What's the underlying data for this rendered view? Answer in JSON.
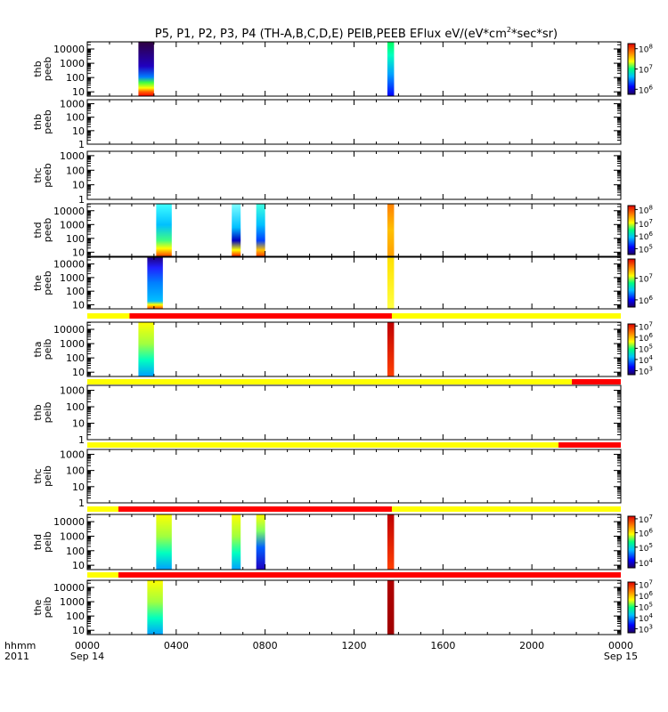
{
  "chart_data": {
    "type": "heatmap",
    "title": "P5, P1, P2, P3, P4 (TH-A,B,C,D,E) PEIB,PEEB EFlux eV/(eV*cm",
    "title_sup": "2",
    "title_tail": "*sec*sr)",
    "x_axis": {
      "label_line1": "hhmm",
      "label_line2": "2011",
      "range_hours": [
        0,
        24
      ],
      "ticks": [
        {
          "hour": 0,
          "label": "0000",
          "date": "Sep 14"
        },
        {
          "hour": 4,
          "label": "0400",
          "date": ""
        },
        {
          "hour": 8,
          "label": "0800",
          "date": ""
        },
        {
          "hour": 12,
          "label": "1200",
          "date": ""
        },
        {
          "hour": 16,
          "label": "1600",
          "date": ""
        },
        {
          "hour": 20,
          "label": "2000",
          "date": ""
        },
        {
          "hour": 24,
          "label": "0000",
          "date": "Sep 15"
        }
      ]
    },
    "panels": [
      {
        "probe": "thb",
        "product": "peeb",
        "yticks": [
          "10",
          "100",
          "1000",
          "10000"
        ],
        "ylog": [
          0.7,
          4.5
        ],
        "colorbar": {
          "ticks": [
            "10",
            "10",
            "10"
          ],
          "exps": [
            "6",
            "7",
            "8"
          ],
          "positions": [
            0.9,
            0.5,
            0.1
          ]
        },
        "segments": [
          {
            "start": 2.3,
            "end": 3.0,
            "style": "dark_top"
          },
          {
            "start": 13.5,
            "end": 13.8,
            "style": "gcb"
          }
        ]
      },
      {
        "probe": "thb",
        "product": "peeb",
        "yticks": [
          "1",
          "10",
          "100",
          "1000"
        ],
        "ylog": [
          0,
          3.3
        ],
        "colorbar": null,
        "segments": []
      },
      {
        "probe": "thc",
        "product": "peeb",
        "yticks": [
          "1",
          "10",
          "100",
          "1000"
        ],
        "ylog": [
          0,
          3.3
        ],
        "colorbar": null,
        "segments": []
      },
      {
        "probe": "thd",
        "product": "peeb",
        "yticks": [
          "10",
          "100",
          "1000",
          "10000"
        ],
        "ylog": [
          0.7,
          4.5
        ],
        "colorbar": {
          "ticks": [
            "10",
            "10",
            "10",
            "10"
          ],
          "exps": [
            "5",
            "6",
            "7",
            "8"
          ],
          "positions": [
            0.88,
            0.62,
            0.36,
            0.08
          ]
        },
        "segments": [
          {
            "start": 3.1,
            "end": 3.8,
            "style": "rainbow_low"
          },
          {
            "start": 6.5,
            "end": 6.9,
            "style": "mixed"
          },
          {
            "start": 7.6,
            "end": 8.0,
            "style": "cyan_mid"
          },
          {
            "start": 13.5,
            "end": 13.8,
            "style": "warm"
          }
        ]
      },
      {
        "probe": "the",
        "product": "peeb",
        "yticks": [
          "10",
          "100",
          "1000",
          "10000"
        ],
        "ylog": [
          0.7,
          4.5
        ],
        "colorbar": {
          "ticks": [
            "10",
            "10"
          ],
          "exps": [
            "6",
            "7"
          ],
          "positions": [
            0.85,
            0.4
          ]
        },
        "segments": [
          {
            "start": 2.7,
            "end": 3.4,
            "style": "blue_top"
          },
          {
            "start": 13.5,
            "end": 13.8,
            "style": "yellow"
          }
        ]
      },
      {
        "probe": "tha",
        "product": "peib",
        "yticks": [
          "10",
          "100",
          "1000",
          "10000"
        ],
        "ylog": [
          0.7,
          4.5
        ],
        "colorbar": {
          "ticks": [
            "10",
            "10",
            "10",
            "10",
            "10"
          ],
          "exps": [
            "3",
            "4",
            "5",
            "6",
            "7"
          ],
          "positions": [
            0.92,
            0.7,
            0.48,
            0.26,
            0.04
          ]
        },
        "status_bar": {
          "red_start": 1.9,
          "red_end": 13.7
        },
        "segments": [
          {
            "start": 2.3,
            "end": 3.0,
            "style": "yellow_cyan"
          },
          {
            "start": 13.5,
            "end": 13.8,
            "style": "red_warm"
          }
        ]
      },
      {
        "probe": "thb",
        "product": "peib",
        "yticks": [
          "1",
          "10",
          "100",
          "1000"
        ],
        "ylog": [
          0,
          3.3
        ],
        "colorbar": null,
        "status_bar": {
          "red_start": 21.8,
          "red_end": 24
        },
        "segments": []
      },
      {
        "probe": "thc",
        "product": "peib",
        "yticks": [
          "1",
          "10",
          "100",
          "1000"
        ],
        "ylog": [
          0,
          3.3
        ],
        "colorbar": null,
        "status_bar": {
          "red_start": 21.2,
          "red_end": 24
        },
        "segments": []
      },
      {
        "probe": "thd",
        "product": "peib",
        "yticks": [
          "10",
          "100",
          "1000",
          "10000"
        ],
        "ylog": [
          0.7,
          4.5
        ],
        "colorbar": {
          "ticks": [
            "10",
            "10",
            "10",
            "10"
          ],
          "exps": [
            "4",
            "5",
            "6",
            "7"
          ],
          "positions": [
            0.9,
            0.6,
            0.32,
            0.05
          ]
        },
        "status_bar": {
          "red_start": 1.4,
          "red_end": 13.7
        },
        "segments": [
          {
            "start": 3.1,
            "end": 3.8,
            "style": "yellow_cyan"
          },
          {
            "start": 6.5,
            "end": 6.9,
            "style": "yellow_cyan"
          },
          {
            "start": 7.6,
            "end": 8.0,
            "style": "yellow_blue"
          },
          {
            "start": 13.5,
            "end": 13.8,
            "style": "red_warm"
          }
        ]
      },
      {
        "probe": "the",
        "product": "peib",
        "yticks": [
          "10",
          "100",
          "1000",
          "10000"
        ],
        "ylog": [
          0.7,
          4.5
        ],
        "colorbar": {
          "ticks": [
            "10",
            "10",
            "10",
            "10",
            "10"
          ],
          "exps": [
            "3",
            "4",
            "5",
            "6",
            "7"
          ],
          "positions": [
            0.92,
            0.7,
            0.48,
            0.26,
            0.04
          ]
        },
        "status_bar": {
          "red_start": 1.4,
          "red_end": 24
        },
        "segments": [
          {
            "start": 2.7,
            "end": 3.4,
            "style": "yellow_cyan"
          },
          {
            "start": 13.5,
            "end": 13.8,
            "style": "dark_red"
          }
        ]
      }
    ],
    "status_colors": {
      "ok": "#ffff00",
      "bad": "#ff0000"
    }
  }
}
